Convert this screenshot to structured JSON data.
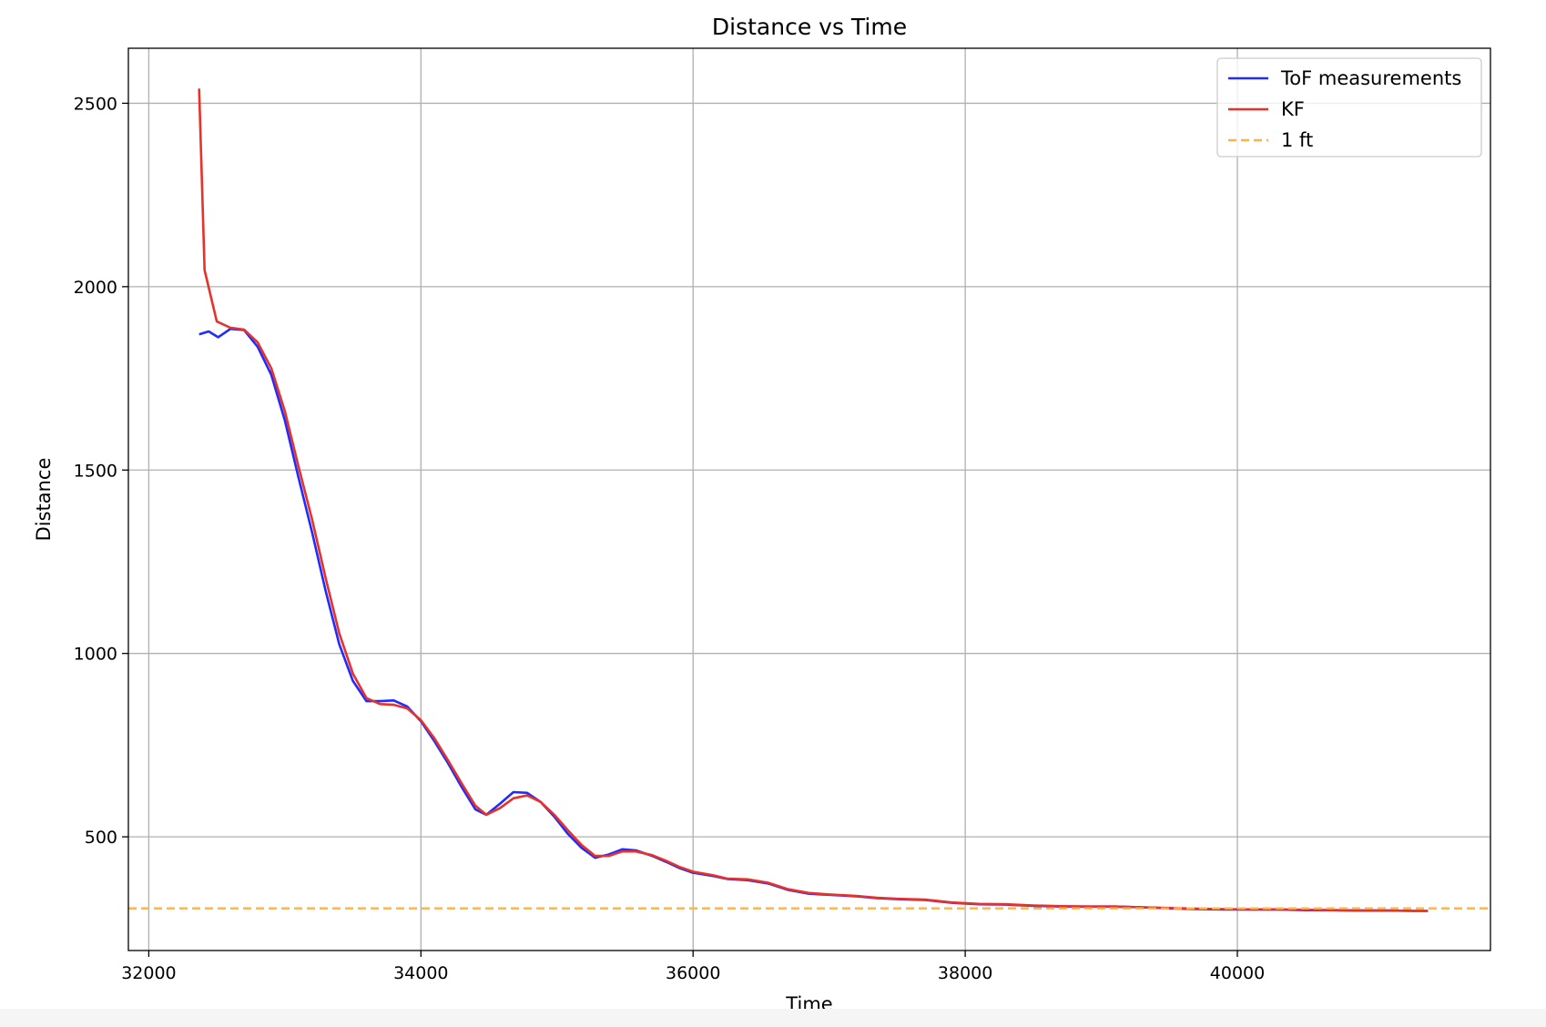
{
  "chart_data": {
    "type": "line",
    "title": "Distance vs Time",
    "xlabel": "Time",
    "ylabel": "Distance",
    "xlim": [
      31850,
      41860
    ],
    "ylim": [
      190,
      2650
    ],
    "xticks": [
      32000,
      34000,
      36000,
      38000,
      40000
    ],
    "yticks": [
      500,
      1000,
      1500,
      2000,
      2500
    ],
    "grid": true,
    "legend_position": "top-right",
    "series": [
      {
        "name": "ToF measurements",
        "color": "#1f2bff",
        "style": "solid",
        "x": [
          32370,
          32440,
          32510,
          32600,
          32700,
          32800,
          32900,
          33000,
          33100,
          33200,
          33300,
          33400,
          33500,
          33600,
          33700,
          33800,
          33900,
          34000,
          34100,
          34200,
          34300,
          34400,
          34480,
          34580,
          34680,
          34780,
          34880,
          34980,
          35080,
          35180,
          35280,
          35380,
          35480,
          35580,
          35700,
          35800,
          35900,
          36000,
          36150,
          36250,
          36400,
          36550,
          36700,
          36850,
          37000,
          37200,
          37350,
          37500,
          37700,
          37900,
          38100,
          38300,
          38500,
          38700,
          38900,
          39100,
          39300,
          39500,
          39700,
          39900,
          40100,
          40300,
          40500,
          40700,
          40900,
          41100,
          41300,
          41400
        ],
        "y": [
          1870,
          1878,
          1862,
          1885,
          1882,
          1836,
          1760,
          1635,
          1480,
          1330,
          1170,
          1025,
          925,
          870,
          870,
          872,
          855,
          815,
          760,
          700,
          635,
          575,
          560,
          590,
          622,
          620,
          595,
          555,
          508,
          470,
          443,
          452,
          466,
          463,
          448,
          432,
          415,
          402,
          393,
          385,
          382,
          373,
          355,
          345,
          342,
          338,
          333,
          330,
          328,
          320,
          316,
          315,
          312,
          310,
          310,
          310,
          308,
          305,
          303,
          302,
          302,
          302,
          300,
          300,
          299,
          299,
          298,
          298
        ]
      },
      {
        "name": "KF",
        "color": "#e8312a",
        "style": "solid",
        "x": [
          32370,
          32410,
          32500,
          32600,
          32700,
          32800,
          32900,
          33000,
          33100,
          33200,
          33300,
          33400,
          33500,
          33600,
          33700,
          33800,
          33900,
          34000,
          34100,
          34200,
          34300,
          34400,
          34480,
          34580,
          34680,
          34780,
          34880,
          34980,
          35080,
          35180,
          35280,
          35380,
          35480,
          35580,
          35700,
          35800,
          35900,
          36000,
          36150,
          36250,
          36400,
          36550,
          36700,
          36850,
          37000,
          37200,
          37350,
          37500,
          37700,
          37900,
          38100,
          38300,
          38500,
          38700,
          38900,
          39100,
          39300,
          39500,
          39700,
          39900,
          40100,
          40300,
          40500,
          40700,
          40900,
          41100,
          41300,
          41400
        ],
        "y": [
          2540,
          2045,
          1905,
          1888,
          1883,
          1848,
          1778,
          1660,
          1510,
          1365,
          1205,
          1055,
          945,
          878,
          862,
          860,
          850,
          818,
          768,
          708,
          645,
          585,
          560,
          578,
          605,
          613,
          595,
          560,
          518,
          478,
          448,
          448,
          460,
          460,
          450,
          435,
          418,
          405,
          395,
          386,
          384,
          375,
          357,
          347,
          343,
          339,
          334,
          331,
          329,
          321,
          317,
          316,
          313,
          311,
          310,
          310,
          308,
          306,
          304,
          303,
          302,
          302,
          301,
          300,
          299,
          299,
          298,
          298
        ]
      },
      {
        "name": "1 ft",
        "color": "#ffb347",
        "style": "dashed",
        "hline": 305
      }
    ]
  }
}
